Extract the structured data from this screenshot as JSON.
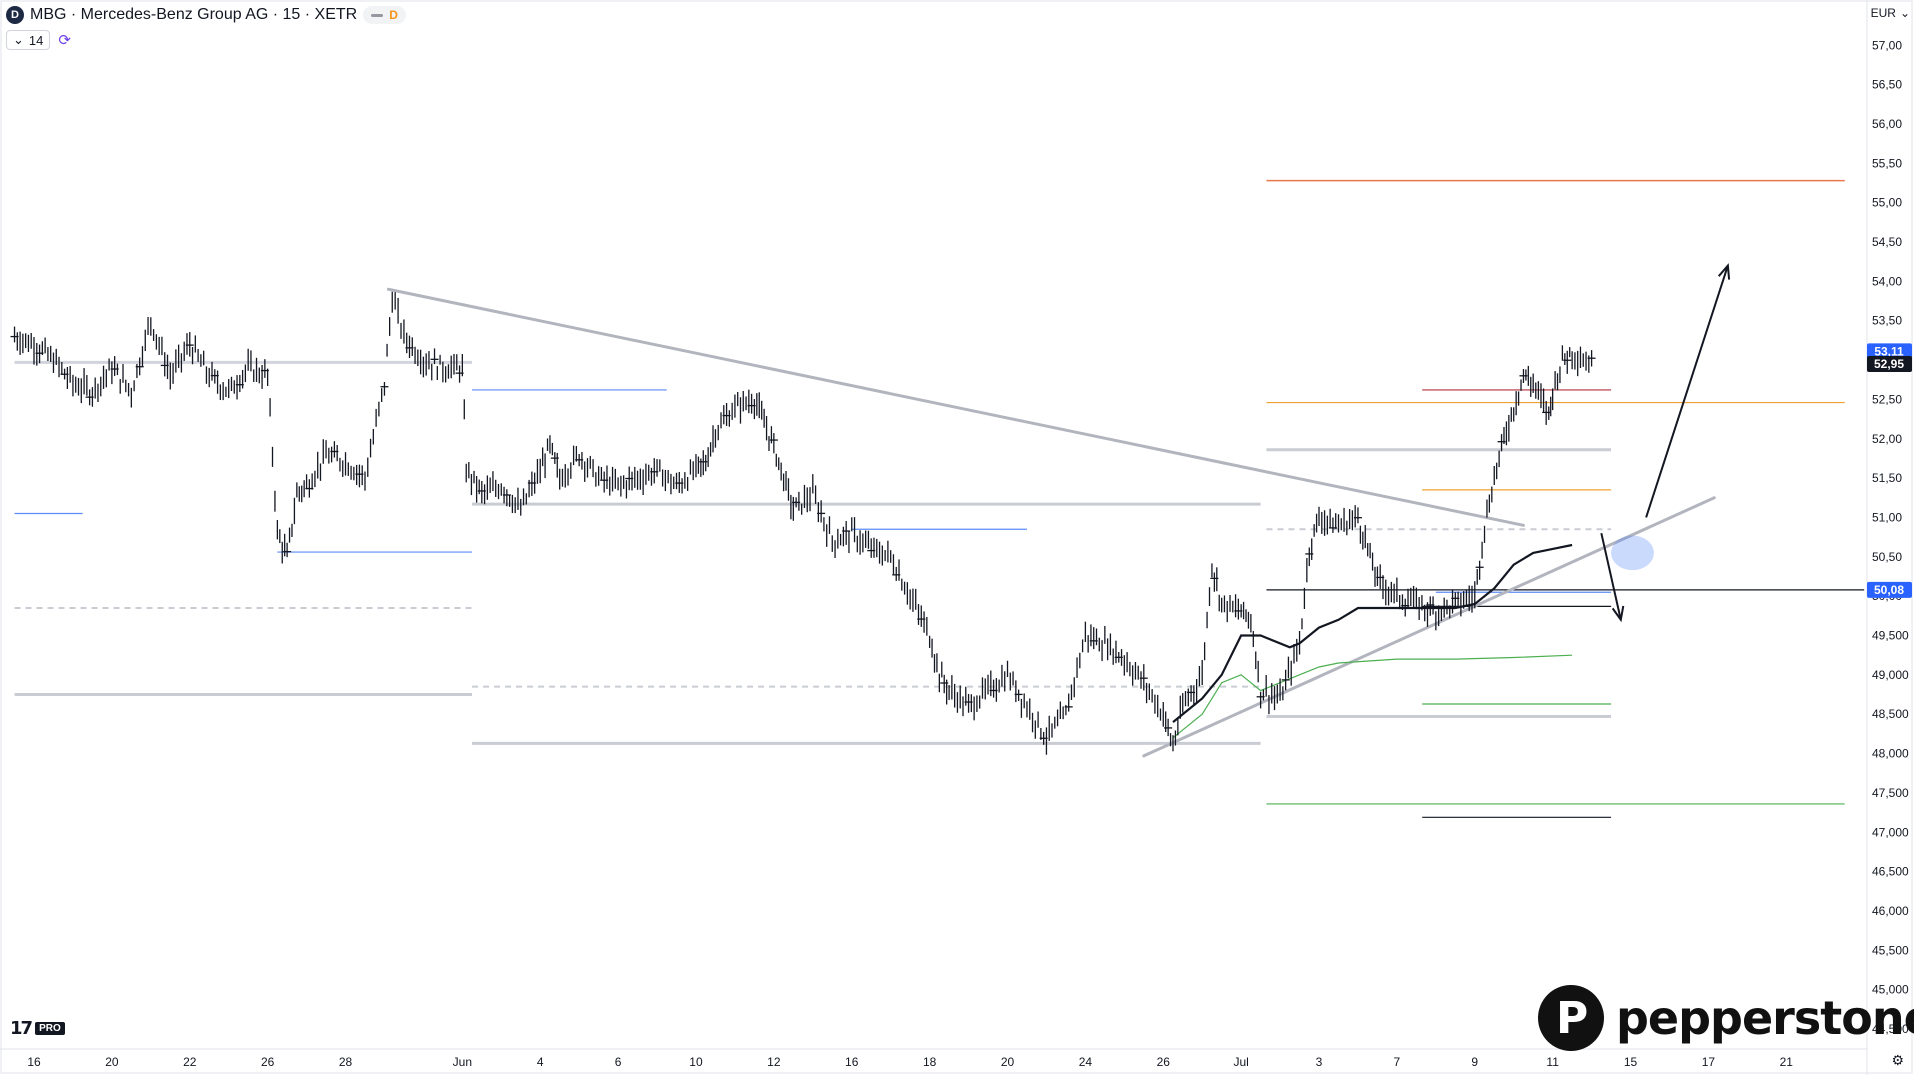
{
  "header": {
    "badge_letter": "D",
    "title": "MBG · Mercedes-Benz Group AG · 15 · XETR",
    "pill_letter": "D"
  },
  "indicator": {
    "chevron": "⌄",
    "length": "14",
    "icon": "refresh-icon"
  },
  "currency": "EUR",
  "footer": {
    "tv_logo": "17",
    "tv_pro": "PRO",
    "settings_icon": "gear-icon"
  },
  "brand": {
    "mark": "P",
    "name": "pepperstone"
  },
  "chart_data": {
    "type": "candlestick",
    "y_axis": {
      "ylim": [
        44.25,
        57.25
      ],
      "ticks": [
        "57,00",
        "56,50",
        "56,00",
        "55,50",
        "55,00",
        "54,50",
        "54,00",
        "53,50",
        "53,00",
        "52,50",
        "52,00",
        "51,50",
        "51,00",
        "50,50",
        "50,00",
        "49,500",
        "49,000",
        "48,500",
        "48,000",
        "47,500",
        "47,000",
        "46,500",
        "46,000",
        "45,500",
        "45,000",
        "44,500"
      ],
      "tick_values": [
        57.0,
        56.5,
        56.0,
        55.5,
        55.0,
        54.5,
        54.0,
        53.5,
        53.0,
        52.5,
        52.0,
        51.5,
        51.0,
        50.5,
        50.0,
        49.5,
        49.0,
        48.5,
        48.0,
        47.5,
        47.0,
        46.5,
        46.0,
        45.5,
        45.0,
        44.5
      ]
    },
    "x_axis": {
      "xlim": [
        0,
        94
      ],
      "ticks": [
        {
          "label": "16",
          "x": 0
        },
        {
          "label": "20",
          "x": 4
        },
        {
          "label": "22",
          "x": 8
        },
        {
          "label": "26",
          "x": 12
        },
        {
          "label": "28",
          "x": 16
        },
        {
          "label": "Jun",
          "x": 22
        },
        {
          "label": "4",
          "x": 26
        },
        {
          "label": "6",
          "x": 30
        },
        {
          "label": "10",
          "x": 34
        },
        {
          "label": "12",
          "x": 38
        },
        {
          "label": "16",
          "x": 42
        },
        {
          "label": "18",
          "x": 46
        },
        {
          "label": "20",
          "x": 50
        },
        {
          "label": "24",
          "x": 54
        },
        {
          "label": "26",
          "x": 58
        },
        {
          "label": "Jul",
          "x": 62
        },
        {
          "label": "3",
          "x": 66
        },
        {
          "label": "7",
          "x": 70
        },
        {
          "label": "9",
          "x": 74
        },
        {
          "label": "11",
          "x": 78
        },
        {
          "label": "15",
          "x": 82
        },
        {
          "label": "17",
          "x": 86
        },
        {
          "label": "21",
          "x": 90
        }
      ]
    },
    "price_labels": [
      {
        "label": "53,11",
        "value": 53.11,
        "color": "#2962ff"
      },
      {
        "label": "52,95",
        "value": 52.95,
        "color": "#131722"
      },
      {
        "label": "50,08",
        "value": 50.08,
        "color": "#2962ff"
      }
    ],
    "price_path": [
      [
        -1,
        53.3
      ],
      [
        0,
        53.2
      ],
      [
        1,
        53.0
      ],
      [
        2,
        52.7
      ],
      [
        3,
        52.6
      ],
      [
        4,
        52.9
      ],
      [
        5,
        52.6
      ],
      [
        6,
        53.5
      ],
      [
        7,
        52.8
      ],
      [
        8,
        53.2
      ],
      [
        9,
        52.8
      ],
      [
        10,
        52.6
      ],
      [
        11,
        52.9
      ],
      [
        12,
        52.8
      ],
      [
        12.5,
        50.8
      ],
      [
        13,
        50.5
      ],
      [
        13.5,
        51.3
      ],
      [
        14,
        51.4
      ],
      [
        15,
        51.8
      ],
      [
        16,
        51.7
      ],
      [
        17,
        51.5
      ],
      [
        18,
        52.7
      ],
      [
        18.4,
        53.8
      ],
      [
        19,
        53.3
      ],
      [
        20,
        53.0
      ],
      [
        21,
        52.9
      ],
      [
        22,
        52.9
      ],
      [
        22.2,
        51.6
      ],
      [
        23,
        51.3
      ],
      [
        24,
        51.4
      ],
      [
        25,
        51.1
      ],
      [
        26,
        51.6
      ],
      [
        26.5,
        51.9
      ],
      [
        27,
        51.5
      ],
      [
        28,
        51.8
      ],
      [
        29,
        51.5
      ],
      [
        30,
        51.4
      ],
      [
        31,
        51.5
      ],
      [
        32,
        51.6
      ],
      [
        33,
        51.4
      ],
      [
        34,
        51.6
      ],
      [
        34.5,
        51.7
      ],
      [
        35,
        52.1
      ],
      [
        36,
        52.4
      ],
      [
        37,
        52.5
      ],
      [
        37.5,
        52.2
      ],
      [
        38,
        51.9
      ],
      [
        38.5,
        51.5
      ],
      [
        39,
        51.1
      ],
      [
        40,
        51.3
      ],
      [
        41,
        50.7
      ],
      [
        42,
        50.8
      ],
      [
        43,
        50.6
      ],
      [
        44,
        50.5
      ],
      [
        45,
        50.0
      ],
      [
        46,
        49.5
      ],
      [
        46.5,
        49.0
      ],
      [
        47,
        48.8
      ],
      [
        48,
        48.6
      ],
      [
        49,
        48.8
      ],
      [
        50,
        49.0
      ],
      [
        51,
        48.6
      ],
      [
        52,
        48.2
      ],
      [
        53,
        48.5
      ],
      [
        54,
        49.5
      ],
      [
        55,
        49.4
      ],
      [
        56,
        49.2
      ],
      [
        57,
        48.9
      ],
      [
        58,
        48.5
      ],
      [
        58.5,
        48.1
      ],
      [
        59,
        48.6
      ],
      [
        60,
        49.0
      ],
      [
        60.5,
        50.4
      ],
      [
        61,
        49.9
      ],
      [
        62,
        49.8
      ],
      [
        62.5,
        49.7
      ],
      [
        63,
        48.8
      ],
      [
        64,
        48.7
      ],
      [
        65,
        49.4
      ],
      [
        65.5,
        50.6
      ],
      [
        66,
        51.0
      ],
      [
        67,
        50.9
      ],
      [
        68,
        51.0
      ],
      [
        68.5,
        50.6
      ],
      [
        69,
        50.2
      ],
      [
        70,
        50.0
      ],
      [
        71,
        49.9
      ],
      [
        72,
        49.8
      ],
      [
        73,
        49.9
      ],
      [
        74,
        50.0
      ],
      [
        74.5,
        50.9
      ],
      [
        75,
        51.5
      ],
      [
        75.5,
        52.0
      ],
      [
        76,
        52.4
      ],
      [
        76.5,
        52.8
      ],
      [
        77,
        52.7
      ],
      [
        77.8,
        52.3
      ],
      [
        78,
        52.6
      ],
      [
        78.5,
        53.0
      ],
      [
        79,
        53.1
      ],
      [
        80,
        52.95
      ]
    ],
    "overlays": {
      "trend_lines": [
        {
          "from": [
            18.2,
            53.9
          ],
          "to": [
            76.5,
            50.9
          ],
          "color": "#b2b5be",
          "width": 3
        },
        {
          "from": [
            57,
            47.97
          ],
          "to": [
            86.3,
            51.25
          ],
          "color": "#b2b5be",
          "width": 3
        }
      ],
      "horizontal_levels": [
        {
          "y": 55.28,
          "from": 63.3,
          "to": 93,
          "color": "#e8764a",
          "width": 1.5
        },
        {
          "y": 52.46,
          "from": 63.3,
          "to": 93,
          "color": "#f0a030",
          "width": 1.2
        },
        {
          "y": 51.35,
          "from": 71.3,
          "to": 81,
          "color": "#f0a030",
          "width": 1.2
        },
        {
          "y": 52.62,
          "from": 71.3,
          "to": 81,
          "color": "#b0303a",
          "width": 1.2
        },
        {
          "y": 47.36,
          "from": 63.3,
          "to": 93,
          "color": "#4caf50",
          "width": 1.2
        },
        {
          "y": 48.63,
          "from": 71.3,
          "to": 81,
          "color": "#4caf50",
          "width": 1.2
        },
        {
          "y": 47.19,
          "from": 71.3,
          "to": 81,
          "color": "#131722",
          "width": 1.2
        },
        {
          "y": 50.08,
          "from": 63.3,
          "to": 94,
          "color": "#131722",
          "width": 1.2
        },
        {
          "y": 49.87,
          "from": 71.3,
          "to": 81,
          "color": "#131722",
          "width": 1.2
        },
        {
          "y": 51.86,
          "from": 63.3,
          "to": 81,
          "color": "#c9ccd2",
          "width": 3
        },
        {
          "y": 48.47,
          "from": 63.3,
          "to": 81,
          "color": "#c9ccd2",
          "width": 3
        },
        {
          "y": 50.85,
          "from": 63.3,
          "to": 81,
          "color": "#c9ccd2",
          "width": 2,
          "dash": true
        },
        {
          "y": 52.97,
          "from": -1,
          "to": 22.5,
          "color": "#d1d4dc",
          "width": 3
        },
        {
          "y": 48.75,
          "from": -1,
          "to": 22.5,
          "color": "#c9ccd2",
          "width": 3
        },
        {
          "y": 49.85,
          "from": -1,
          "to": 22.5,
          "color": "#c9ccd2",
          "width": 2,
          "dash": true
        },
        {
          "y": 51.17,
          "from": 22.5,
          "to": 63,
          "color": "#c9ccd2",
          "width": 3
        },
        {
          "y": 48.13,
          "from": 22.5,
          "to": 63,
          "color": "#c9ccd2",
          "width": 3
        },
        {
          "y": 48.85,
          "from": 22.5,
          "to": 63,
          "color": "#c9ccd2",
          "width": 2,
          "dash": true
        },
        {
          "y": 52.62,
          "from": 22.5,
          "to": 32.5,
          "color": "#5b8cf5",
          "width": 1.2
        },
        {
          "y": 50.56,
          "from": 12.5,
          "to": 22.5,
          "color": "#5b8cf5",
          "width": 1.2
        },
        {
          "y": 51.05,
          "from": -1,
          "to": 2.5,
          "color": "#5b8cf5",
          "width": 1.2
        },
        {
          "y": 50.85,
          "from": 42,
          "to": 51,
          "color": "#5b8cf5",
          "width": 1.2
        },
        {
          "y": 50.05,
          "from": 72,
          "to": 81,
          "color": "#5b8cf5",
          "width": 1.2
        }
      ],
      "vwap_black": [
        [
          58.5,
          48.4
        ],
        [
          60,
          48.7
        ],
        [
          61,
          49.0
        ],
        [
          62,
          49.5
        ],
        [
          63,
          49.5
        ],
        [
          64.5,
          49.35
        ],
        [
          65,
          49.4
        ],
        [
          66,
          49.6
        ],
        [
          67,
          49.7
        ],
        [
          68,
          49.85
        ],
        [
          70,
          49.85
        ],
        [
          72,
          49.85
        ],
        [
          73,
          49.85
        ],
        [
          74,
          49.9
        ],
        [
          75,
          50.1
        ],
        [
          76,
          50.4
        ],
        [
          77,
          50.55
        ],
        [
          78,
          50.6
        ],
        [
          79,
          50.65
        ]
      ],
      "vwap_green": [
        [
          58.5,
          48.2
        ],
        [
          60,
          48.5
        ],
        [
          61,
          48.9
        ],
        [
          62,
          49.0
        ],
        [
          63,
          48.8
        ],
        [
          64,
          48.9
        ],
        [
          65,
          49.0
        ],
        [
          66,
          49.1
        ],
        [
          67,
          49.15
        ],
        [
          70,
          49.2
        ],
        [
          73,
          49.2
        ],
        [
          76,
          49.22
        ],
        [
          79,
          49.25
        ]
      ],
      "arrows": [
        {
          "from": [
            82.8,
            51.0
          ],
          "to": [
            87,
            54.2
          ],
          "color": "#131722"
        },
        {
          "from": [
            80.5,
            50.8
          ],
          "to": [
            81.5,
            49.7
          ],
          "color": "#131722"
        }
      ],
      "zone_ellipse": {
        "cx": 82.1,
        "cy": 50.55,
        "rx": 1.1,
        "ry": 0.22,
        "color": "#4f86f7"
      }
    }
  }
}
